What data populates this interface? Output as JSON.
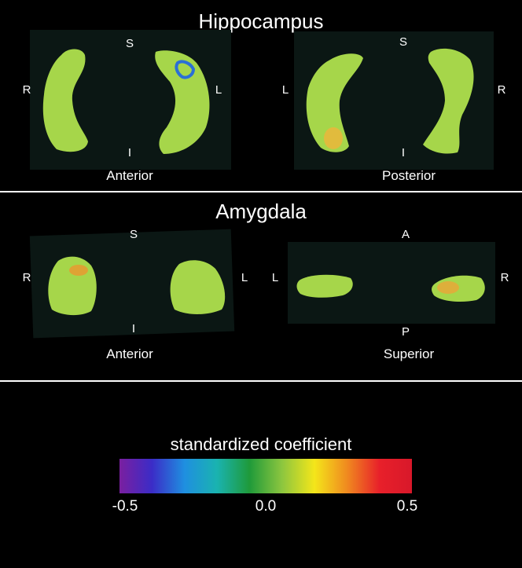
{
  "hippocampus": {
    "title": "Hippocampus",
    "anterior": {
      "view_label": "Anterior",
      "top": "S",
      "bottom": "I",
      "left": "R",
      "right": "L"
    },
    "posterior": {
      "view_label": "Posterior",
      "top": "S",
      "bottom": "I",
      "left": "L",
      "right": "R"
    }
  },
  "amygdala": {
    "title": "Amygdala",
    "anterior": {
      "view_label": "Anterior",
      "top": "S",
      "bottom": "I",
      "left": "R",
      "right": "L"
    },
    "superior": {
      "view_label": "Superior",
      "top": "A",
      "bottom": "P",
      "left": "L",
      "right": "R"
    }
  },
  "colorbar": {
    "title": "standardized coefficient",
    "min_label": "-0.5",
    "mid_label": "0.0",
    "max_label": "0.5",
    "colors": [
      "#7a1fa0",
      "#3b2cc7",
      "#1f8fe0",
      "#1ab3b0",
      "#1f9a3a",
      "#8cc63f",
      "#f4e61a",
      "#f08a1f",
      "#e8202a",
      "#d8182a"
    ]
  },
  "colors": {
    "structure": "#a6d64a",
    "negative": "#2a6fd6",
    "positive": "#f0a030",
    "divider": "#ffffff"
  }
}
